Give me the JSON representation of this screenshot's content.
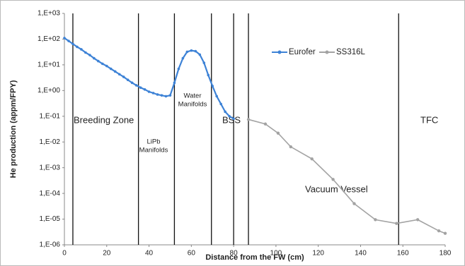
{
  "chart_data": {
    "type": "line",
    "x_label": "Distance from the FW (cm)",
    "y_label": "He production (appm/FPY)",
    "xlim": [
      0,
      180
    ],
    "xticks": [
      0,
      20,
      40,
      60,
      80,
      100,
      120,
      140,
      160,
      180
    ],
    "ylim": [
      1e-06,
      1000
    ],
    "log_y": true,
    "grid": false,
    "yticks": [
      {
        "value": 1e-06,
        "label": "1,E-06"
      },
      {
        "value": 1e-05,
        "label": "1,E-05"
      },
      {
        "value": 0.0001,
        "label": "1,E-04"
      },
      {
        "value": 0.001,
        "label": "1,E-03"
      },
      {
        "value": 0.01,
        "label": "1,E-02"
      },
      {
        "value": 0.1,
        "label": "1,E-01"
      },
      {
        "value": 1,
        "label": "1,E+00"
      },
      {
        "value": 10,
        "label": "1,E+01"
      },
      {
        "value": 100,
        "label": "1,E+02"
      },
      {
        "value": 1000,
        "label": "1,E+03"
      }
    ],
    "zone_boundaries": [
      4,
      35,
      52,
      69.5,
      80,
      87,
      158
    ],
    "annotations": [
      {
        "lines": [
          "Breeding Zone"
        ]
      },
      {
        "lines": [
          "LiPb",
          "Manifolds"
        ]
      },
      {
        "lines": [
          "Water",
          "Manifolds"
        ]
      },
      {
        "lines": [
          "BSS"
        ]
      },
      {
        "lines": [
          "Vacuum Vessel"
        ]
      },
      {
        "lines": [
          "TFC"
        ]
      }
    ],
    "legend_position": "top-right",
    "series": [
      {
        "name": "Eurofer",
        "color": "#3d82d6",
        "x": [
          0,
          2,
          4,
          6,
          8,
          10,
          12,
          14,
          16,
          18,
          20,
          22,
          24,
          26,
          28,
          30,
          32,
          34,
          36,
          38,
          40,
          42,
          44,
          46,
          48,
          50,
          52,
          54,
          56,
          58,
          60,
          62,
          64,
          66,
          68,
          70,
          72,
          74,
          76,
          78,
          80
        ],
        "values": [
          110,
          85,
          65,
          50,
          40,
          30,
          24,
          18,
          14,
          11,
          9,
          7,
          5.5,
          4.3,
          3.4,
          2.6,
          2,
          1.6,
          1.3,
          1.1,
          0.9,
          0.8,
          0.7,
          0.65,
          0.6,
          0.65,
          2,
          7,
          18,
          32,
          36,
          34,
          25,
          12,
          4,
          1.5,
          0.6,
          0.3,
          0.15,
          0.1,
          0.08
        ]
      },
      {
        "name": "SS316L",
        "color": "#a3a3a3",
        "x": [
          87,
          95,
          101,
          107,
          117,
          127,
          137,
          147,
          157,
          167,
          177,
          180
        ],
        "values": [
          0.075,
          0.05,
          0.022,
          0.0065,
          0.0022,
          0.00035,
          4e-05,
          9.5e-06,
          6.8e-06,
          9.5e-06,
          3.5e-06,
          2.8e-06
        ]
      }
    ]
  }
}
